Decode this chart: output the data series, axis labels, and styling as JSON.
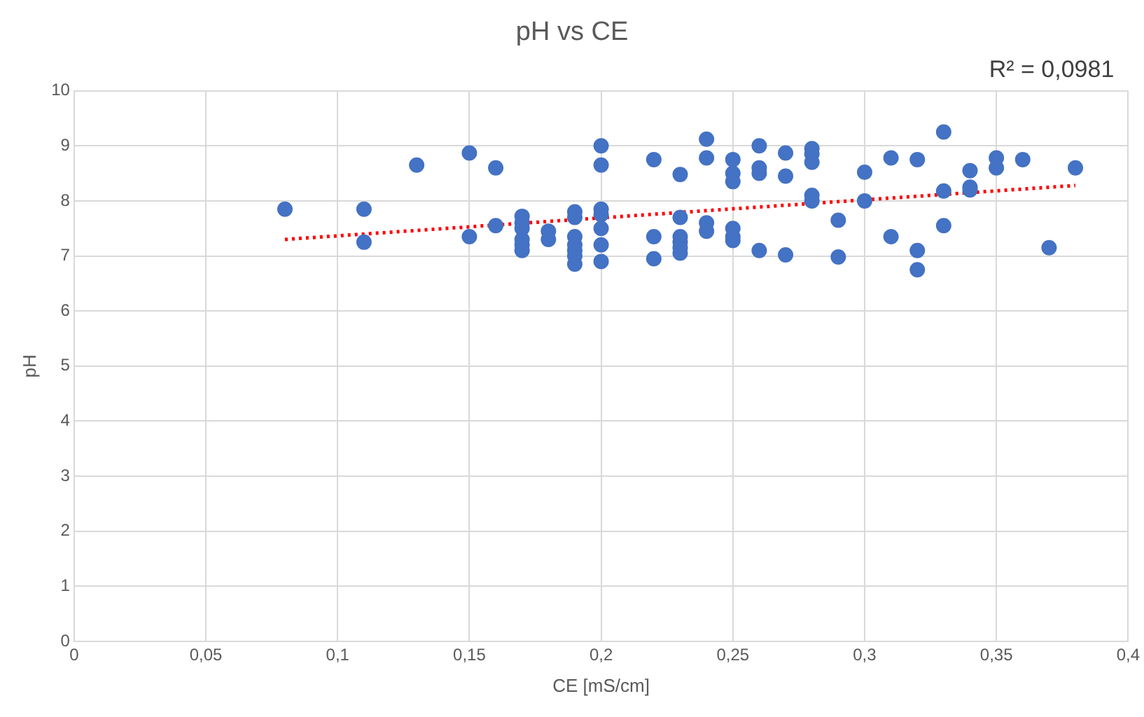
{
  "chart_data": {
    "type": "scatter",
    "title": "pH vs CE",
    "xlabel": "CE [mS/cm]",
    "ylabel": "pH",
    "annotations": [
      "R² = 0,0981"
    ],
    "xlim": [
      0,
      0.4
    ],
    "xticks": [
      0,
      {
        "value": 0.05,
        "label": "0,05"
      },
      {
        "value": 0.1,
        "label": "0,1"
      },
      {
        "value": 0.15,
        "label": "0,15"
      },
      {
        "value": 0.2,
        "label": "0,2"
      },
      {
        "value": 0.25,
        "label": "0,25"
      },
      {
        "value": 0.3,
        "label": "0,3"
      },
      {
        "value": 0.35,
        "label": "0,35"
      },
      {
        "value": 0.4,
        "label": "0,4"
      }
    ],
    "ylim": [
      0,
      10
    ],
    "yticks": [
      0,
      1,
      2,
      3,
      4,
      5,
      6,
      7,
      8,
      9,
      10
    ],
    "grid": true,
    "legend": false,
    "marker": "circle",
    "series": [
      {
        "type": "scatter",
        "color": "#4472c4",
        "x": [
          0.08,
          0.11,
          0.11,
          0.13,
          0.15,
          0.15,
          0.16,
          0.16,
          0.17,
          0.17,
          0.17,
          0.17,
          0.17,
          0.17,
          0.18,
          0.18,
          0.19,
          0.19,
          0.19,
          0.19,
          0.19,
          0.19,
          0.19,
          0.2,
          0.2,
          0.2,
          0.2,
          0.2,
          0.2,
          0.2,
          0.22,
          0.22,
          0.22,
          0.23,
          0.23,
          0.23,
          0.23,
          0.23,
          0.23,
          0.24,
          0.24,
          0.24,
          0.24,
          0.25,
          0.25,
          0.25,
          0.25,
          0.25,
          0.25,
          0.26,
          0.26,
          0.26,
          0.26,
          0.27,
          0.27,
          0.27,
          0.28,
          0.28,
          0.28,
          0.28,
          0.28,
          0.29,
          0.29,
          0.3,
          0.3,
          0.31,
          0.31,
          0.32,
          0.32,
          0.32,
          0.33,
          0.33,
          0.33,
          0.34,
          0.34,
          0.34,
          0.35,
          0.35,
          0.36,
          0.37,
          0.38
        ],
        "values": [
          7.85,
          7.85,
          7.25,
          8.65,
          8.87,
          7.35,
          8.6,
          7.55,
          7.72,
          7.6,
          7.5,
          7.3,
          7.2,
          7.1,
          7.45,
          7.3,
          7.8,
          7.7,
          7.35,
          7.2,
          7.1,
          7.0,
          6.85,
          9.0,
          8.65,
          7.85,
          7.75,
          7.5,
          7.2,
          6.9,
          8.75,
          7.35,
          6.95,
          8.48,
          7.7,
          7.35,
          7.25,
          7.15,
          7.05,
          9.12,
          8.78,
          7.6,
          7.45,
          8.75,
          8.5,
          8.35,
          7.5,
          7.35,
          7.28,
          9.0,
          8.6,
          8.5,
          7.1,
          8.87,
          8.45,
          7.02,
          8.95,
          8.85,
          8.7,
          8.1,
          8.0,
          7.65,
          6.98,
          8.52,
          8.0,
          8.78,
          7.35,
          8.75,
          7.1,
          6.75,
          9.25,
          8.18,
          7.55,
          8.55,
          8.25,
          8.2,
          8.78,
          8.6,
          8.75,
          7.15,
          8.6
        ]
      },
      {
        "type": "line",
        "color": "#ff0000",
        "line_style": "dotted",
        "marker": "none",
        "x": [
          0.08,
          0.38
        ],
        "values": [
          7.3,
          8.28
        ]
      }
    ]
  }
}
